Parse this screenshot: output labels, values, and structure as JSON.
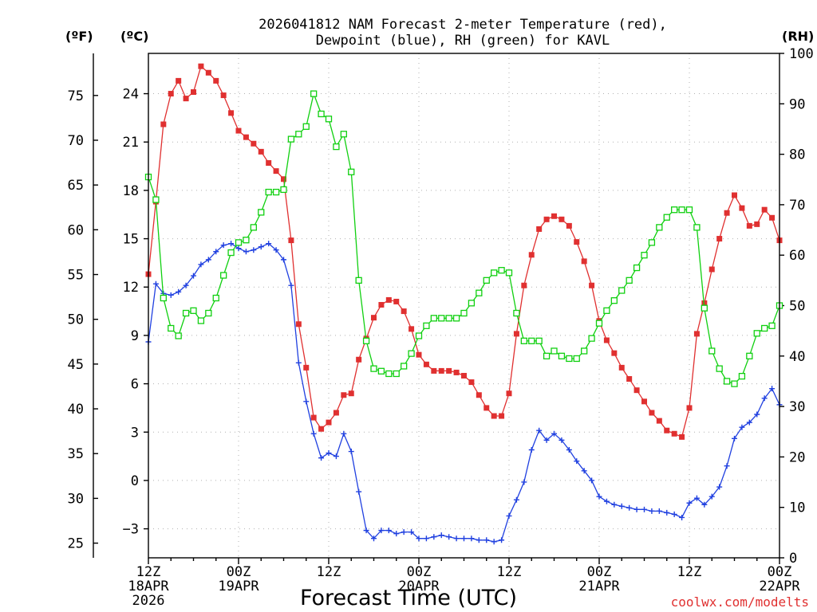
{
  "chart_data": {
    "type": "line",
    "title_line1": "2026041812 NAM Forecast 2-meter Temperature (red),",
    "title_line2": "Dewpoint (blue), RH (green) for KAVL",
    "xlabel": "Forecast Time (UTC)",
    "credit": "coolwx.com/modelts",
    "unit_f": "(ºF)",
    "unit_c": "(ºC)",
    "unit_rh": "(RH)",
    "x_range_hours": [
      0,
      84
    ],
    "x_ticks": [
      {
        "hour": 0,
        "line1": "12Z",
        "line2": "18APR",
        "line3": "2026"
      },
      {
        "hour": 12,
        "line1": "00Z",
        "line2": "19APR",
        "line3": ""
      },
      {
        "hour": 24,
        "line1": "12Z",
        "line2": "",
        "line3": ""
      },
      {
        "hour": 36,
        "line1": "00Z",
        "line2": "20APR",
        "line3": ""
      },
      {
        "hour": 48,
        "line1": "12Z",
        "line2": "",
        "line3": ""
      },
      {
        "hour": 60,
        "line1": "00Z",
        "line2": "21APR",
        "line3": ""
      },
      {
        "hour": 72,
        "line1": "12Z",
        "line2": "",
        "line3": ""
      },
      {
        "hour": 84,
        "line1": "00Z",
        "line2": "22APR",
        "line3": ""
      }
    ],
    "y_celsius_range": [
      -4.8,
      26.5
    ],
    "y_celsius_ticks": [
      "-3",
      "0",
      "3",
      "6",
      "9",
      "12",
      "15",
      "18",
      "21",
      "24"
    ],
    "y_fahrenheit_ticks": [
      "25",
      "30",
      "35",
      "40",
      "45",
      "50",
      "55",
      "60",
      "65",
      "70",
      "75"
    ],
    "y_rh_range": [
      0,
      100
    ],
    "y_rh_ticks": [
      "0",
      "10",
      "20",
      "30",
      "40",
      "50",
      "60",
      "70",
      "80",
      "90",
      "100"
    ],
    "grid": true,
    "colors": {
      "temperature": "#e03030",
      "dewpoint": "#2040e0",
      "rh": "#10d010"
    },
    "series": [
      {
        "key": "temperature",
        "marker": "filled-square",
        "unit": "C",
        "values": [
          [
            0,
            12.8
          ],
          [
            1,
            17.3
          ],
          [
            2,
            22.1
          ],
          [
            3,
            24.0
          ],
          [
            4,
            24.8
          ],
          [
            5,
            23.7
          ],
          [
            6,
            24.1
          ],
          [
            7,
            25.7
          ],
          [
            8,
            25.3
          ],
          [
            9,
            24.8
          ],
          [
            10,
            23.9
          ],
          [
            11,
            22.8
          ],
          [
            12,
            21.7
          ],
          [
            13,
            21.3
          ],
          [
            14,
            20.9
          ],
          [
            15,
            20.4
          ],
          [
            16,
            19.7
          ],
          [
            17,
            19.2
          ],
          [
            18,
            18.7
          ],
          [
            19,
            14.9
          ],
          [
            20,
            9.7
          ],
          [
            21,
            7.0
          ],
          [
            22,
            3.9
          ],
          [
            23,
            3.2
          ],
          [
            24,
            3.6
          ],
          [
            25,
            4.2
          ],
          [
            26,
            5.3
          ],
          [
            27,
            5.4
          ],
          [
            28,
            7.5
          ],
          [
            29,
            8.8
          ],
          [
            30,
            10.1
          ],
          [
            31,
            10.9
          ],
          [
            32,
            11.2
          ],
          [
            33,
            11.1
          ],
          [
            34,
            10.5
          ],
          [
            35,
            9.4
          ],
          [
            36,
            7.8
          ],
          [
            37,
            7.2
          ],
          [
            38,
            6.8
          ],
          [
            39,
            6.8
          ],
          [
            40,
            6.8
          ],
          [
            41,
            6.7
          ],
          [
            42,
            6.5
          ],
          [
            43,
            6.1
          ],
          [
            44,
            5.3
          ],
          [
            45,
            4.5
          ],
          [
            46,
            4.0
          ],
          [
            47,
            4.0
          ],
          [
            48,
            5.4
          ],
          [
            49,
            9.1
          ],
          [
            50,
            12.1
          ],
          [
            51,
            14.0
          ],
          [
            52,
            15.6
          ],
          [
            53,
            16.2
          ],
          [
            54,
            16.4
          ],
          [
            55,
            16.2
          ],
          [
            56,
            15.8
          ],
          [
            57,
            14.8
          ],
          [
            58,
            13.6
          ],
          [
            59,
            12.1
          ],
          [
            60,
            9.9
          ],
          [
            61,
            8.7
          ],
          [
            62,
            7.9
          ],
          [
            63,
            7.0
          ],
          [
            64,
            6.3
          ],
          [
            65,
            5.6
          ],
          [
            66,
            4.9
          ],
          [
            67,
            4.2
          ],
          [
            68,
            3.7
          ],
          [
            69,
            3.1
          ],
          [
            70,
            2.9
          ],
          [
            71,
            2.7
          ],
          [
            72,
            4.5
          ],
          [
            73,
            9.1
          ],
          [
            74,
            11.0
          ],
          [
            75,
            13.1
          ],
          [
            76,
            15.0
          ],
          [
            77,
            16.6
          ],
          [
            78,
            17.7
          ],
          [
            79,
            16.9
          ],
          [
            80,
            15.8
          ],
          [
            81,
            15.9
          ],
          [
            82,
            16.8
          ],
          [
            83,
            16.3
          ],
          [
            84,
            14.9
          ]
        ]
      },
      {
        "key": "dewpoint",
        "marker": "plus",
        "unit": "C",
        "values": [
          [
            0,
            8.6
          ],
          [
            1,
            12.2
          ],
          [
            2,
            11.6
          ],
          [
            3,
            11.5
          ],
          [
            4,
            11.7
          ],
          [
            5,
            12.1
          ],
          [
            6,
            12.7
          ],
          [
            7,
            13.4
          ],
          [
            8,
            13.7
          ],
          [
            9,
            14.2
          ],
          [
            10,
            14.6
          ],
          [
            11,
            14.7
          ],
          [
            12,
            14.4
          ],
          [
            13,
            14.2
          ],
          [
            14,
            14.3
          ],
          [
            15,
            14.5
          ],
          [
            16,
            14.7
          ],
          [
            17,
            14.3
          ],
          [
            18,
            13.7
          ],
          [
            19,
            12.1
          ],
          [
            20,
            7.3
          ],
          [
            21,
            4.9
          ],
          [
            22,
            2.9
          ],
          [
            23,
            1.4
          ],
          [
            24,
            1.7
          ],
          [
            25,
            1.5
          ],
          [
            26,
            2.9
          ],
          [
            27,
            1.8
          ],
          [
            28,
            -0.7
          ],
          [
            29,
            -3.1
          ],
          [
            30,
            -3.6
          ],
          [
            31,
            -3.1
          ],
          [
            32,
            -3.1
          ],
          [
            33,
            -3.3
          ],
          [
            34,
            -3.2
          ],
          [
            35,
            -3.2
          ],
          [
            36,
            -3.6
          ],
          [
            37,
            -3.6
          ],
          [
            38,
            -3.5
          ],
          [
            39,
            -3.4
          ],
          [
            40,
            -3.5
          ],
          [
            41,
            -3.6
          ],
          [
            42,
            -3.6
          ],
          [
            43,
            -3.6
          ],
          [
            44,
            -3.7
          ],
          [
            45,
            -3.7
          ],
          [
            46,
            -3.8
          ],
          [
            47,
            -3.7
          ],
          [
            48,
            -2.2
          ],
          [
            49,
            -1.2
          ],
          [
            50,
            -0.1
          ],
          [
            51,
            1.9
          ],
          [
            52,
            3.1
          ],
          [
            53,
            2.5
          ],
          [
            54,
            2.9
          ],
          [
            55,
            2.5
          ],
          [
            56,
            1.9
          ],
          [
            57,
            1.2
          ],
          [
            58,
            0.6
          ],
          [
            59,
            0.0
          ],
          [
            60,
            -1.0
          ],
          [
            61,
            -1.3
          ],
          [
            62,
            -1.5
          ],
          [
            63,
            -1.6
          ],
          [
            64,
            -1.7
          ],
          [
            65,
            -1.8
          ],
          [
            66,
            -1.8
          ],
          [
            67,
            -1.9
          ],
          [
            68,
            -1.9
          ],
          [
            69,
            -2.0
          ],
          [
            70,
            -2.1
          ],
          [
            71,
            -2.3
          ],
          [
            72,
            -1.4
          ],
          [
            73,
            -1.1
          ],
          [
            74,
            -1.5
          ],
          [
            75,
            -1.0
          ],
          [
            76,
            -0.4
          ],
          [
            77,
            0.9
          ],
          [
            78,
            2.6
          ],
          [
            79,
            3.3
          ],
          [
            80,
            3.6
          ],
          [
            81,
            4.1
          ],
          [
            82,
            5.1
          ],
          [
            83,
            5.7
          ],
          [
            84,
            4.7
          ]
        ]
      },
      {
        "key": "rh",
        "marker": "open-square",
        "unit": "%",
        "values": [
          [
            0,
            75.5
          ],
          [
            1,
            71.0
          ],
          [
            2,
            51.5
          ],
          [
            3,
            45.5
          ],
          [
            4,
            44.0
          ],
          [
            5,
            48.5
          ],
          [
            6,
            49.0
          ],
          [
            7,
            47.0
          ],
          [
            8,
            48.5
          ],
          [
            9,
            51.5
          ],
          [
            10,
            56.0
          ],
          [
            11,
            60.5
          ],
          [
            12,
            62.5
          ],
          [
            13,
            63.0
          ],
          [
            14,
            65.5
          ],
          [
            15,
            68.5
          ],
          [
            16,
            72.5
          ],
          [
            17,
            72.5
          ],
          [
            18,
            73.0
          ],
          [
            19,
            83.0
          ],
          [
            20,
            84.0
          ],
          [
            21,
            85.5
          ],
          [
            22,
            92.0
          ],
          [
            23,
            88.0
          ],
          [
            24,
            87.0
          ],
          [
            25,
            81.5
          ],
          [
            26,
            84.0
          ],
          [
            27,
            76.5
          ],
          [
            28,
            55.0
          ],
          [
            29,
            43.0
          ],
          [
            30,
            37.5
          ],
          [
            31,
            37.0
          ],
          [
            32,
            36.5
          ],
          [
            33,
            36.5
          ],
          [
            34,
            38.0
          ],
          [
            35,
            40.5
          ],
          [
            36,
            44.0
          ],
          [
            37,
            46.0
          ],
          [
            38,
            47.5
          ],
          [
            39,
            47.5
          ],
          [
            40,
            47.5
          ],
          [
            41,
            47.5
          ],
          [
            42,
            48.5
          ],
          [
            43,
            50.5
          ],
          [
            44,
            52.5
          ],
          [
            45,
            55.0
          ],
          [
            46,
            56.5
          ],
          [
            47,
            57.0
          ],
          [
            48,
            56.5
          ],
          [
            49,
            48.5
          ],
          [
            50,
            43.0
          ],
          [
            51,
            43.0
          ],
          [
            52,
            43.0
          ],
          [
            53,
            40.0
          ],
          [
            54,
            41.0
          ],
          [
            55,
            40.0
          ],
          [
            56,
            39.5
          ],
          [
            57,
            39.5
          ],
          [
            58,
            41.0
          ],
          [
            59,
            43.5
          ],
          [
            60,
            46.5
          ],
          [
            61,
            49.0
          ],
          [
            62,
            51.0
          ],
          [
            63,
            53.0
          ],
          [
            64,
            55.0
          ],
          [
            65,
            57.5
          ],
          [
            66,
            60.0
          ],
          [
            67,
            62.5
          ],
          [
            68,
            65.5
          ],
          [
            69,
            67.5
          ],
          [
            70,
            69.0
          ],
          [
            71,
            69.0
          ],
          [
            72,
            69.0
          ],
          [
            73,
            65.5
          ],
          [
            74,
            49.5
          ],
          [
            75,
            41.0
          ],
          [
            76,
            37.5
          ],
          [
            77,
            35.0
          ],
          [
            78,
            34.5
          ],
          [
            79,
            36.0
          ],
          [
            80,
            40.0
          ],
          [
            81,
            44.5
          ],
          [
            82,
            45.5
          ],
          [
            83,
            46.0
          ],
          [
            84,
            50.0
          ]
        ]
      }
    ]
  }
}
